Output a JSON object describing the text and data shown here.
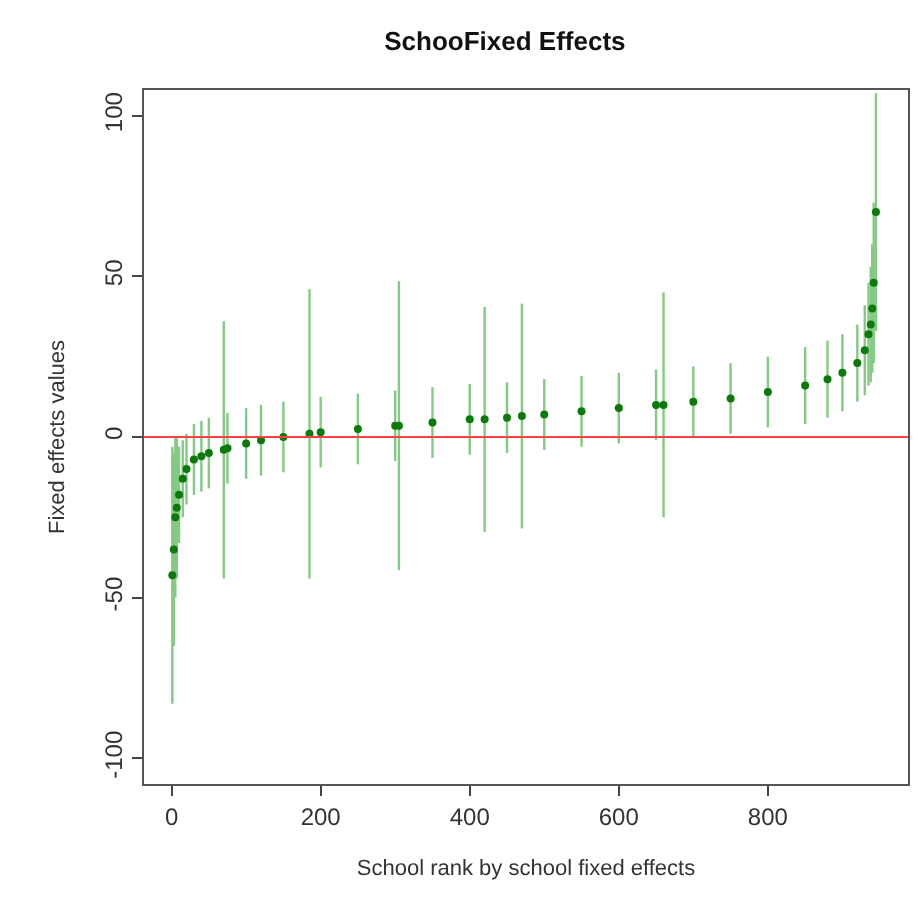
{
  "chart_data": {
    "type": "scatter",
    "title": "SchooFixed Effects",
    "xlabel": "School rank by school fixed effects",
    "ylabel": "Fixed effects values",
    "x": [
      1,
      3,
      5,
      7,
      10,
      15,
      20,
      30,
      40,
      50,
      70,
      75,
      100,
      120,
      150,
      185,
      200,
      250,
      300,
      305,
      350,
      400,
      420,
      450,
      470,
      500,
      550,
      600,
      650,
      660,
      700,
      750,
      800,
      850,
      880,
      900,
      920,
      930,
      935,
      938,
      940,
      942,
      945
    ],
    "series": [
      {
        "color": "#0a7a0a",
        "values": [
          -43,
          -35,
          -25,
          -22,
          -18,
          -13,
          -10,
          -7,
          -6,
          -5,
          -4,
          -3.5,
          -2,
          -1,
          0,
          1,
          1.5,
          2.5,
          3.5,
          3.5,
          4.5,
          5.5,
          5.5,
          6,
          6.5,
          7,
          8,
          9,
          10,
          10,
          11,
          12,
          14,
          16,
          18,
          20,
          23,
          27,
          32,
          35,
          40,
          48,
          70
        ],
        "errors": [
          40,
          30,
          25,
          22,
          15,
          12,
          11,
          11,
          11,
          11,
          40,
          11,
          11,
          11,
          11,
          45,
          11,
          11,
          11,
          45,
          11,
          11,
          35,
          11,
          35,
          11,
          11,
          11,
          11,
          35,
          11,
          11,
          11,
          12,
          12,
          12,
          12,
          14,
          16,
          18,
          20,
          25,
          37
        ]
      }
    ],
    "marker": "circle",
    "xlim": [
      -37,
      988
    ],
    "xticks": [
      0,
      200,
      400,
      600,
      800
    ],
    "ylim": [
      -108,
      108
    ],
    "yticks": [
      -100,
      -50,
      0,
      50,
      100
    ],
    "ref_lines": [
      {
        "axis": "y",
        "value": 0,
        "color": "#ff4040"
      }
    ]
  }
}
